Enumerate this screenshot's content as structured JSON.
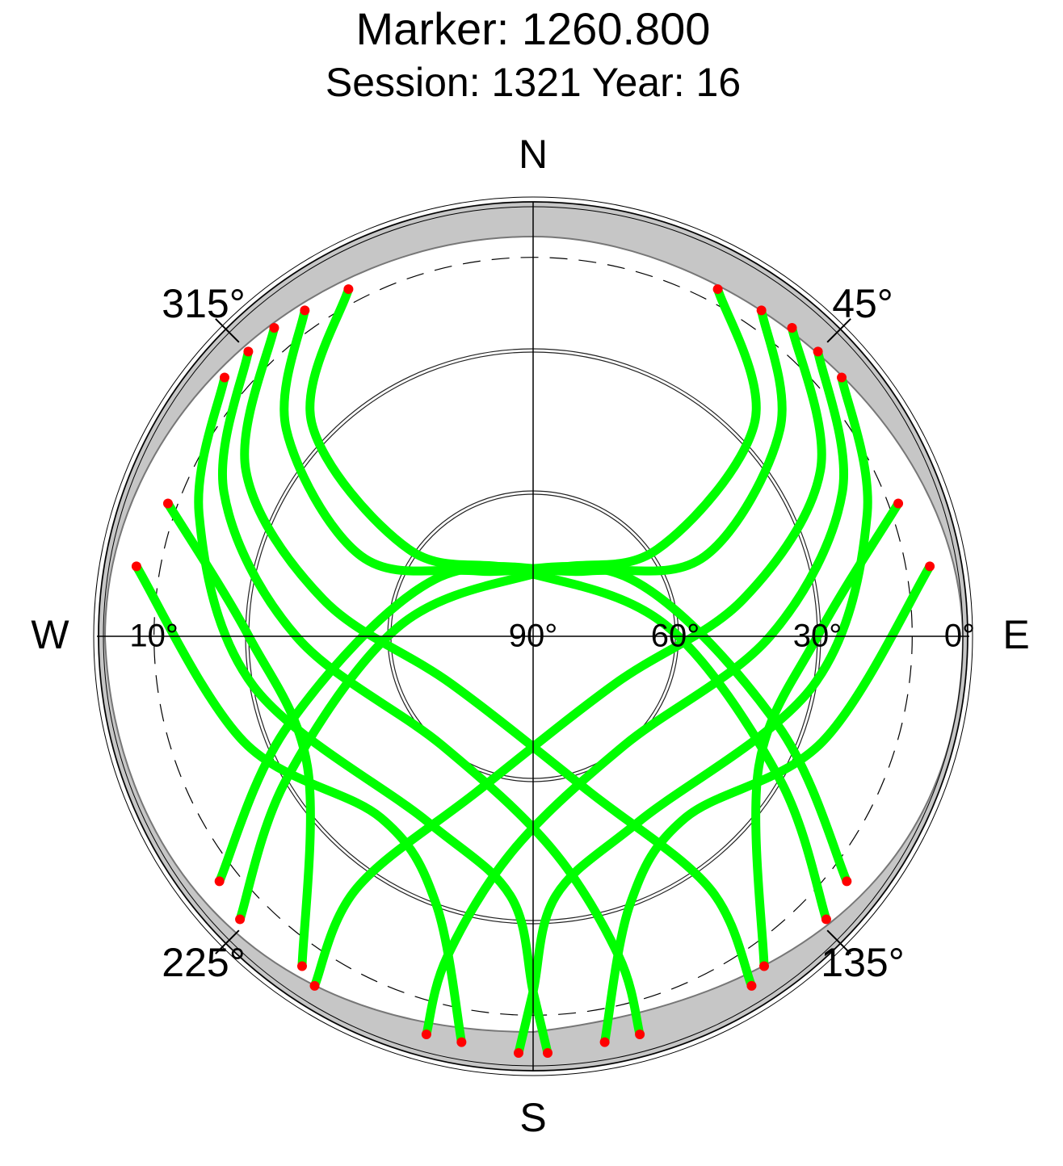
{
  "chart_data": {
    "type": "skyplot",
    "title": "Marker: 1260.800",
    "subtitle": "Session: 1321 Year: 16",
    "directions": {
      "north": "N",
      "east": "E",
      "south": "S",
      "west": "W"
    },
    "azimuth_ticks": [
      {
        "value": 45,
        "label": "45°"
      },
      {
        "value": 135,
        "label": "135°"
      },
      {
        "value": 225,
        "label": "225°"
      },
      {
        "value": 315,
        "label": "315°"
      }
    ],
    "elevation_ticks": [
      {
        "value": 90,
        "label": "90°"
      },
      {
        "value": 60,
        "label": "60°"
      },
      {
        "value": 30,
        "label": "30°"
      },
      {
        "value": 0,
        "label": "0°"
      }
    ],
    "west_elevation_ticks": [
      {
        "value": 10,
        "label": "10°"
      }
    ],
    "elevation_circles": [
      60,
      30
    ],
    "cutoff_elevation": 10,
    "rlim": [
      90,
      0
    ],
    "track_color": "#00ff00",
    "endpoint_color": "#ff0000",
    "series": [
      {
        "az": [
          28,
          46,
          55,
          10,
          275,
          240,
          226
        ],
        "el": [
          7,
          25,
          58,
          76,
          62,
          30,
          4
        ]
      },
      {
        "az": [
          35,
          50,
          65,
          40,
          300,
          250,
          232
        ],
        "el": [
          6,
          22,
          50,
          72,
          66,
          35,
          6
        ]
      },
      {
        "az": [
          40,
          60,
          80,
          120,
          200,
          215,
          212
        ],
        "el": [
          5,
          20,
          45,
          70,
          55,
          25,
          3
        ]
      },
      {
        "az": [
          45,
          65,
          90,
          140,
          185,
          195,
          195
        ],
        "el": [
          5,
          18,
          40,
          60,
          45,
          20,
          3
        ]
      },
      {
        "az": [
          50,
          70,
          100,
          150,
          175,
          180,
          182
        ],
        "el": [
          5,
          15,
          30,
          45,
          35,
          15,
          2
        ]
      },
      {
        "az": [
          332,
          314,
          305,
          350,
          85,
          120,
          134
        ],
        "el": [
          7,
          25,
          58,
          76,
          62,
          30,
          4
        ]
      },
      {
        "az": [
          325,
          310,
          295,
          320,
          60,
          110,
          128
        ],
        "el": [
          6,
          22,
          50,
          72,
          66,
          35,
          6
        ]
      },
      {
        "az": [
          320,
          300,
          280,
          240,
          160,
          145,
          148
        ],
        "el": [
          5,
          20,
          45,
          70,
          55,
          25,
          3
        ]
      },
      {
        "az": [
          315,
          295,
          270,
          220,
          175,
          165,
          165
        ],
        "el": [
          5,
          18,
          40,
          60,
          45,
          20,
          3
        ]
      },
      {
        "az": [
          310,
          290,
          260,
          210,
          185,
          180,
          178
        ],
        "el": [
          5,
          15,
          30,
          45,
          35,
          15,
          2
        ]
      },
      {
        "az": [
          280,
          250,
          220,
          200,
          190
        ],
        "el": [
          5,
          25,
          40,
          30,
          3
        ]
      },
      {
        "az": [
          80,
          110,
          140,
          160,
          170
        ],
        "el": [
          5,
          25,
          40,
          30,
          3
        ]
      },
      {
        "az": [
          290,
          270,
          240,
          215
        ],
        "el": [
          8,
          30,
          35,
          5
        ]
      },
      {
        "az": [
          70,
          90,
          120,
          145
        ],
        "el": [
          8,
          30,
          35,
          5
        ]
      }
    ]
  }
}
